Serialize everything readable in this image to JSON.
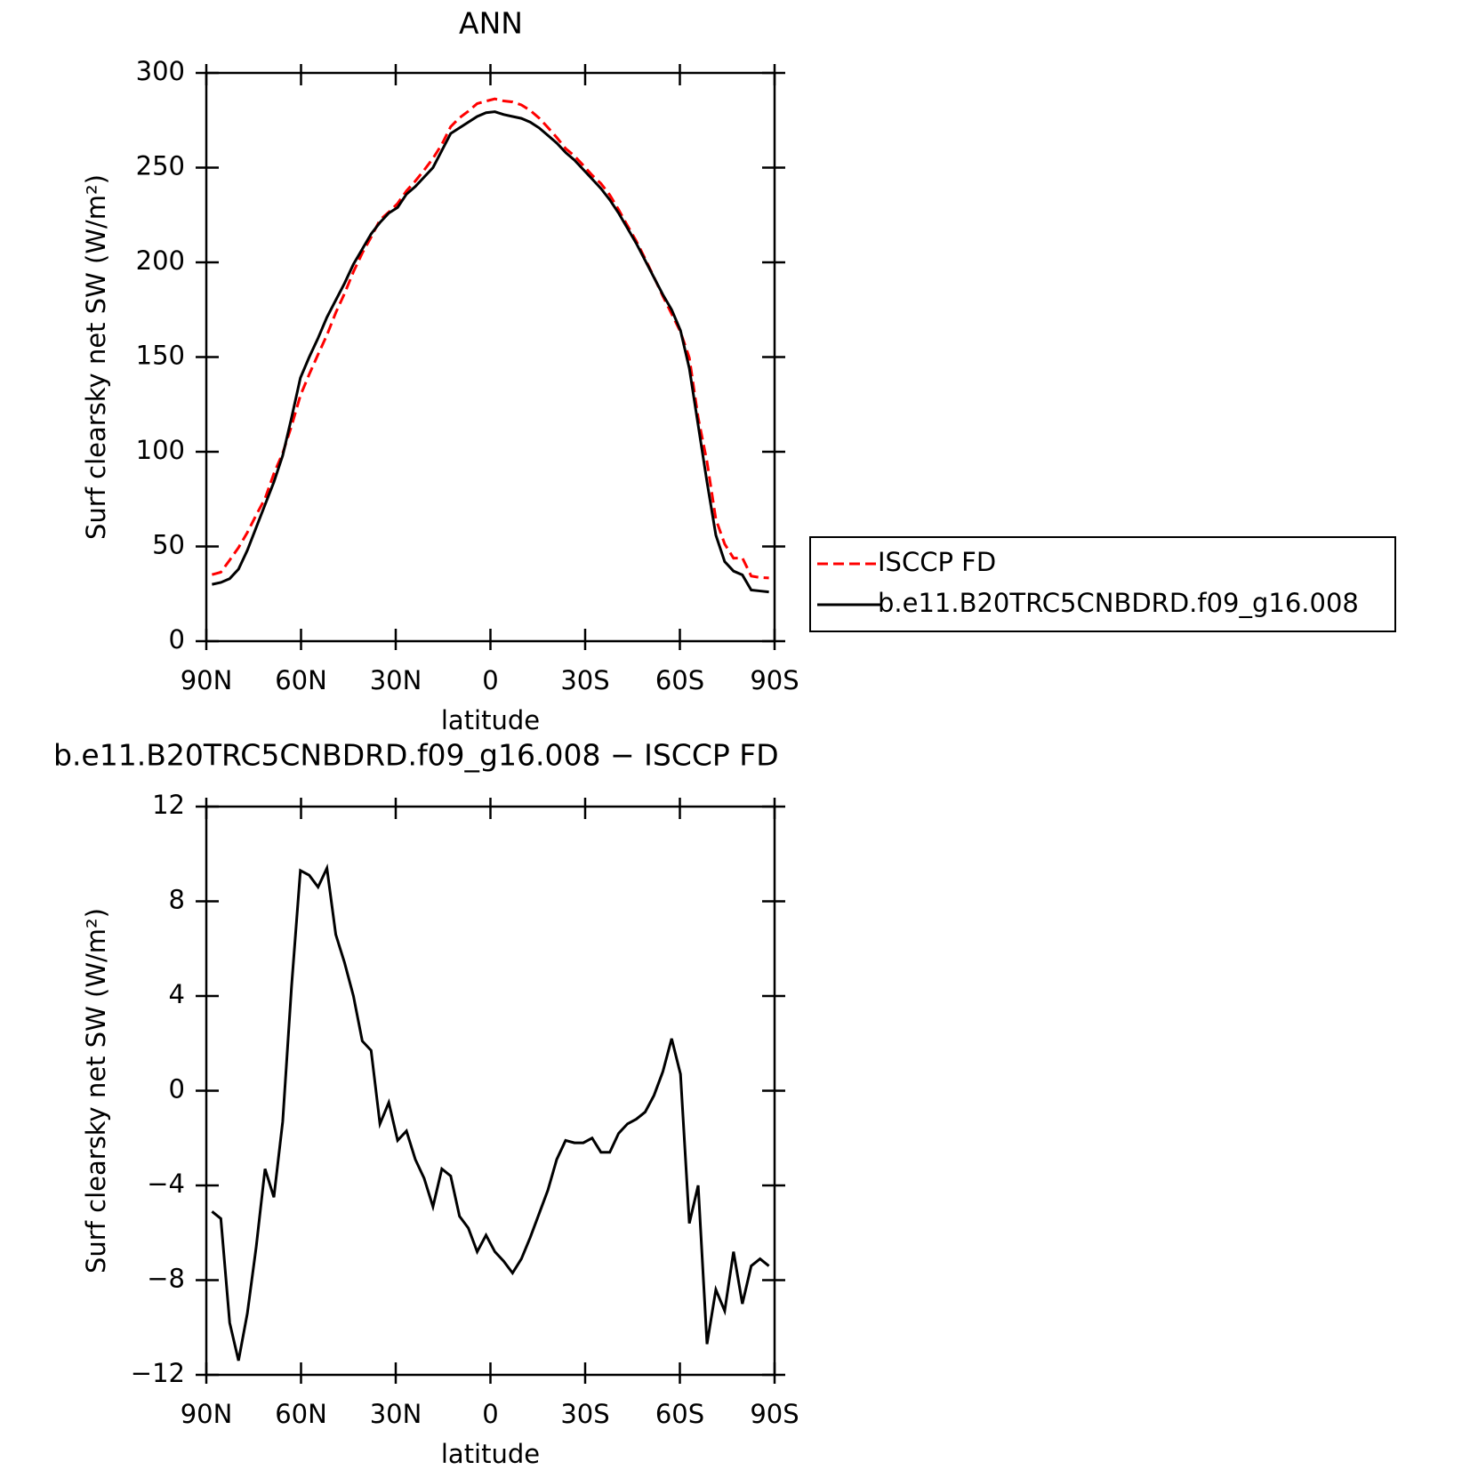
{
  "chart_data": [
    {
      "type": "line",
      "title": "ANN",
      "xlabel": "latitude",
      "ylabel": "Surf clearsky net SW (W/m²)",
      "xlim": [
        90,
        -90
      ],
      "xticks": [
        {
          "value": 90,
          "label": "90N"
        },
        {
          "value": 60,
          "label": "60N"
        },
        {
          "value": 30,
          "label": "30N"
        },
        0,
        {
          "value": -30,
          "label": "30S"
        },
        {
          "value": -60,
          "label": "60S"
        },
        {
          "value": -90,
          "label": "90S"
        }
      ],
      "ylim": [
        0,
        300
      ],
      "yticks": [
        0,
        50,
        100,
        150,
        200,
        250,
        300
      ],
      "legend": "right",
      "x": [
        88.2,
        85.4,
        82.6,
        79.8,
        77,
        74.2,
        71.4,
        68.6,
        65.8,
        63,
        60.2,
        57.4,
        54.6,
        51.8,
        49,
        46.2,
        43.4,
        40.6,
        37.8,
        35,
        32.2,
        29.4,
        26.6,
        23.8,
        21,
        18.2,
        15.4,
        12.6,
        9.8,
        7,
        4.2,
        1.4,
        -1.4,
        -4.2,
        -7,
        -9.8,
        -12.6,
        -15.4,
        -18.2,
        -21,
        -23.8,
        -26.6,
        -29.4,
        -32.2,
        -35,
        -37.8,
        -40.6,
        -43.4,
        -46.2,
        -49,
        -51.8,
        -54.6,
        -57.4,
        -60.2,
        -63,
        -65.8,
        -68.6,
        -71.4,
        -74.2,
        -77,
        -79.8,
        -82.6,
        -85.4,
        -88.2
      ],
      "series": [
        {
          "name": "ISCCP FD",
          "color": "#ff0000",
          "line_style": "dashed",
          "values": [
            35.1,
            36.4,
            42.8,
            49.4,
            57.4,
            66.6,
            75.3,
            88.5,
            99.3,
            113.6,
            129.7,
            140.9,
            151.4,
            161.6,
            173.4,
            183.6,
            195,
            204.9,
            213.3,
            222.4,
            226.5,
            231.1,
            237.7,
            242.9,
            248.7,
            254.9,
            262.3,
            271.6,
            276.3,
            279.8,
            283.8,
            285.1,
            286.3,
            285.2,
            284.7,
            283.1,
            280.2,
            276.2,
            271.2,
            265.9,
            260.1,
            256.2,
            251.2,
            246,
            241.6,
            235.6,
            227.8,
            219.4,
            211.2,
            201.9,
            192.2,
            182.2,
            172.8,
            163.3,
            149.6,
            118,
            94.7,
            64.4,
            51.3,
            43.8,
            44,
            34.4,
            33.6,
            33.4
          ]
        },
        {
          "name": "b.e11.B20TRC5CNBDRD.f09_g16.008",
          "color": "#000000",
          "line_style": "solid",
          "values": [
            30,
            31,
            33,
            38,
            48,
            60,
            72,
            84,
            98,
            118,
            139,
            150,
            160,
            171,
            180,
            189,
            199,
            207,
            215,
            221,
            226,
            229,
            236,
            240,
            245,
            250,
            259,
            268,
            271,
            274,
            277,
            279,
            279.5,
            278,
            277,
            276,
            274,
            271,
            267,
            263,
            258,
            254,
            249,
            244,
            239,
            233,
            226,
            218,
            210,
            201,
            192,
            183,
            175,
            164,
            144,
            114,
            84,
            56,
            42,
            37,
            35,
            27,
            26.5,
            26
          ]
        }
      ]
    },
    {
      "type": "line",
      "title": "b.e11.B20TRC5CNBDRD.f09_g16.008 − ISCCP FD",
      "xlabel": "latitude",
      "ylabel": "Surf clearsky net SW (W/m²)",
      "xlim": [
        90,
        -90
      ],
      "xticks": [
        {
          "value": 90,
          "label": "90N"
        },
        {
          "value": 60,
          "label": "60N"
        },
        {
          "value": 30,
          "label": "30N"
        },
        0,
        {
          "value": -30,
          "label": "30S"
        },
        {
          "value": -60,
          "label": "60S"
        },
        {
          "value": -90,
          "label": "90S"
        }
      ],
      "ylim": [
        -12,
        12
      ],
      "yticks": [
        {
          "value": -12,
          "label": "−12"
        },
        {
          "value": -8,
          "label": "−8"
        },
        {
          "value": -4,
          "label": "−4"
        },
        0,
        4,
        8,
        12
      ],
      "x": [
        88.2,
        85.4,
        82.6,
        79.8,
        77,
        74.2,
        71.4,
        68.6,
        65.8,
        63,
        60.2,
        57.4,
        54.6,
        51.8,
        49,
        46.2,
        43.4,
        40.6,
        37.8,
        35,
        32.2,
        29.4,
        26.6,
        23.8,
        21,
        18.2,
        15.4,
        12.6,
        9.8,
        7,
        4.2,
        1.4,
        -1.4,
        -4.2,
        -7,
        -9.8,
        -12.6,
        -15.4,
        -18.2,
        -21,
        -23.8,
        -26.6,
        -29.4,
        -32.2,
        -35,
        -37.8,
        -40.6,
        -43.4,
        -46.2,
        -49,
        -51.8,
        -54.6,
        -57.4,
        -60.2,
        -63,
        -65.8,
        -68.6,
        -71.4,
        -74.2,
        -77,
        -79.8,
        -82.6,
        -85.4,
        -88.2
      ],
      "color": "#000000",
      "values": [
        -5.1,
        -5.4,
        -9.8,
        -11.4,
        -9.4,
        -6.6,
        -3.3,
        -4.5,
        -1.3,
        4.4,
        9.3,
        9.1,
        8.6,
        9.4,
        6.6,
        5.4,
        4.0,
        2.1,
        1.7,
        -1.4,
        -0.5,
        -2.1,
        -1.7,
        -2.9,
        -3.7,
        -4.9,
        -3.3,
        -3.6,
        -5.3,
        -5.8,
        -6.8,
        -6.1,
        -6.8,
        -7.2,
        -7.7,
        -7.1,
        -6.2,
        -5.2,
        -4.2,
        -2.9,
        -2.1,
        -2.2,
        -2.2,
        -2.0,
        -2.6,
        -2.6,
        -1.8,
        -1.4,
        -1.2,
        -0.9,
        -0.2,
        0.8,
        2.2,
        0.7,
        -5.6,
        -4.0,
        -10.7,
        -8.4,
        -9.3,
        -6.8,
        -9.0,
        -7.4,
        -7.1,
        -7.4
      ]
    }
  ]
}
